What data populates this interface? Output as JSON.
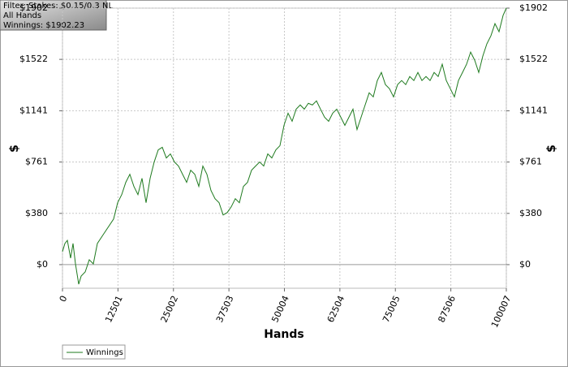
{
  "filter_box": {
    "line1": "Filter: Stakes: $0.15/0.3 NL",
    "line2": "All Hands",
    "line3": "Winnings: $1902.23"
  },
  "chart_data": {
    "type": "line",
    "xlabel": "Hands",
    "ylabel": "$",
    "y2label": "$",
    "x": [
      0,
      548,
      1097,
      1828,
      2377,
      2925,
      3657,
      4205,
      5119,
      6033,
      6948,
      7862,
      9690,
      11518,
      12432,
      13347,
      14261,
      15175,
      16089,
      17003,
      17917,
      18831,
      19745,
      20660,
      21574,
      22488,
      23402,
      24316,
      25231,
      26145,
      27059,
      27973,
      28887,
      29801,
      30715,
      31629,
      32544,
      33458,
      34372,
      35286,
      36200,
      37114,
      38028,
      38942,
      39857,
      40771,
      41685,
      42599,
      43513,
      44427,
      45342,
      46256,
      47170,
      48084,
      48998,
      49912,
      50826,
      51740,
      52655,
      53569,
      54483,
      55397,
      56311,
      57226,
      58140,
      59054,
      59968,
      60882,
      61796,
      62710,
      63624,
      64539,
      65453,
      66367,
      67281,
      68195,
      69109,
      70024,
      70938,
      71852,
      72766,
      73680,
      74594,
      75508,
      76422,
      77337,
      78251,
      79165,
      80079,
      80993,
      81907,
      82822,
      83736,
      84650,
      85564,
      86478,
      87392,
      88306,
      89221,
      90135,
      91049,
      91963,
      92877,
      93791,
      94705,
      95620,
      96534,
      97448,
      98362,
      99276,
      100007
    ],
    "series": [
      {
        "name": "Winnings",
        "color": "#1e7a1e",
        "values": [
          97,
          157,
          180,
          48,
          157,
          6,
          -145,
          -85,
          -54,
          36,
          6,
          157,
          248,
          338,
          459,
          519,
          610,
          670,
          580,
          519,
          640,
          459,
          640,
          761,
          851,
          870,
          791,
          821,
          761,
          731,
          670,
          610,
          700,
          670,
          580,
          731,
          670,
          550,
          489,
          459,
          368,
          386,
          429,
          489,
          459,
          580,
          610,
          700,
          731,
          761,
          731,
          821,
          791,
          851,
          882,
          1033,
          1123,
          1063,
          1153,
          1184,
          1153,
          1196,
          1184,
          1214,
          1153,
          1093,
          1063,
          1123,
          1153,
          1093,
          1033,
          1093,
          1153,
          1002,
          1093,
          1184,
          1274,
          1244,
          1365,
          1425,
          1335,
          1304,
          1244,
          1335,
          1365,
          1335,
          1395,
          1365,
          1425,
          1365,
          1395,
          1365,
          1425,
          1395,
          1486,
          1365,
          1304,
          1244,
          1365,
          1425,
          1486,
          1576,
          1516,
          1425,
          1546,
          1637,
          1697,
          1787,
          1727,
          1848,
          1902
        ]
      }
    ],
    "xlim": [
      0,
      100007
    ],
    "xticks": [
      0,
      12501,
      25002,
      37503,
      50004,
      62504,
      75005,
      87506,
      100007
    ],
    "ylim": [
      -175,
      1902
    ],
    "yticks": [
      {
        "value": 0,
        "label": "$0"
      },
      {
        "value": 380,
        "label": "$380"
      },
      {
        "value": 761,
        "label": "$761"
      },
      {
        "value": 1141,
        "label": "$1141"
      },
      {
        "value": 1522,
        "label": "$1522"
      },
      {
        "value": 1902,
        "label": "$1902"
      }
    ],
    "grid": true,
    "legend": "bottom-left"
  }
}
